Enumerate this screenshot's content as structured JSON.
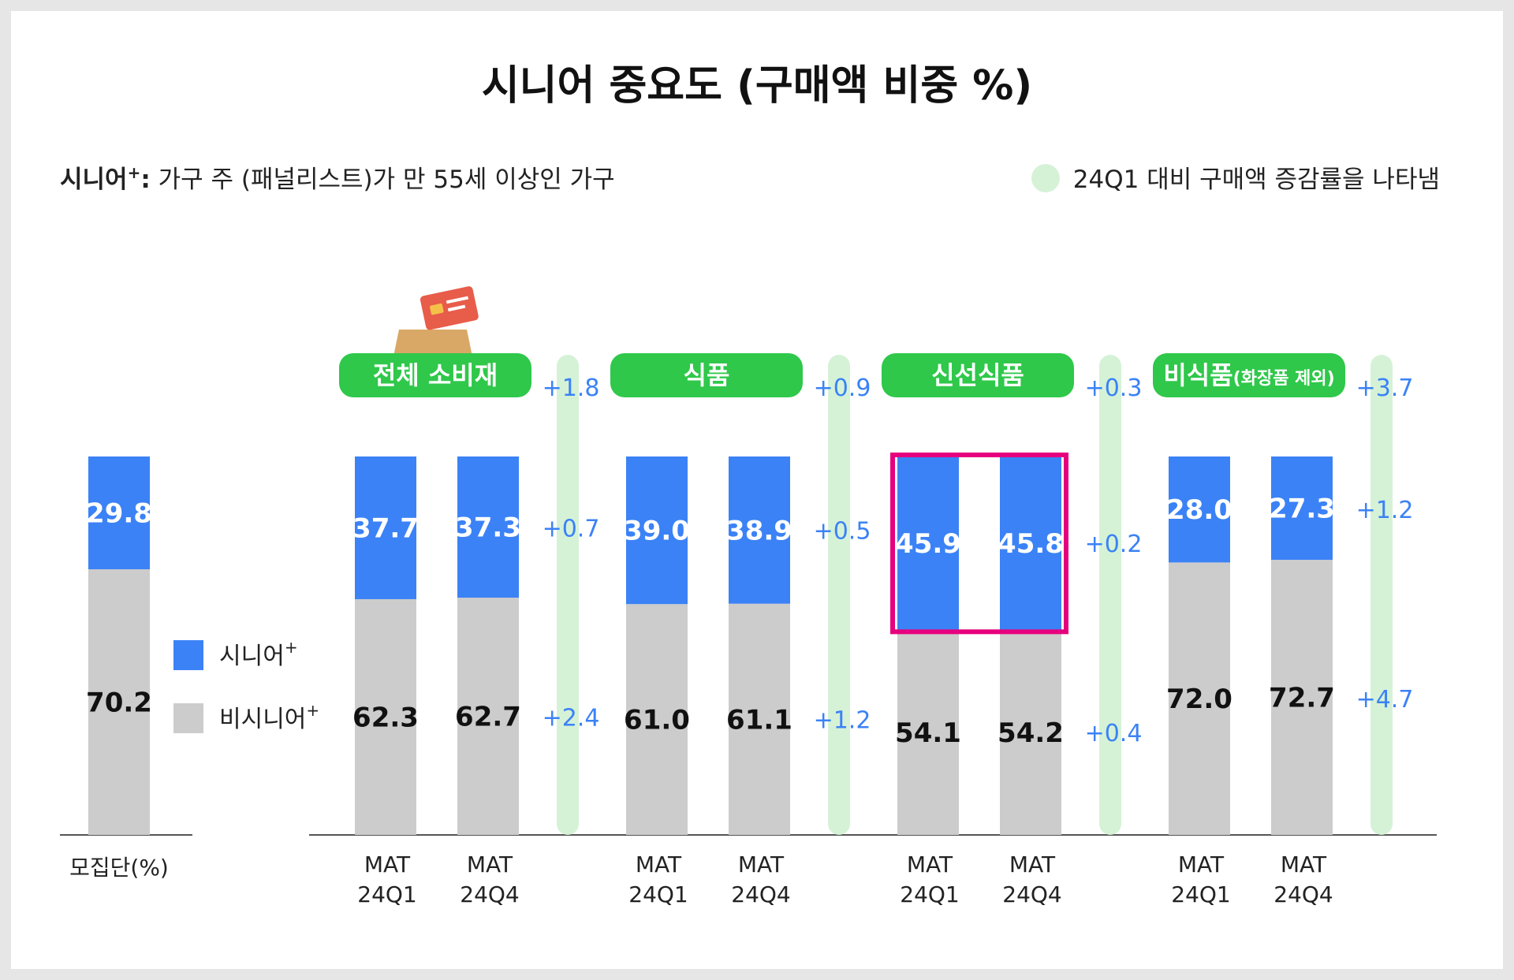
{
  "title": "시니어 중요도 (구매액 비중 %)",
  "definition": {
    "term": "시니어",
    "sup": "+",
    "colon": ":",
    "text": " 가구 주 (패널리스트)가 만 55세 이상인 가구"
  },
  "band_note": "24Q1 대비 구매액 증감률을 나타냄",
  "legend": [
    {
      "label": "시니어",
      "sup": "+",
      "color": "#3b82f6"
    },
    {
      "label": "비시니어",
      "sup": "+",
      "color": "#cccccc"
    }
  ],
  "colors": {
    "senior": "#3b82f6",
    "non_senior": "#cccccc",
    "pill": "#2fc84a",
    "band": "#d5f2d7",
    "delta_text": "#3b82f6",
    "highlight": "#e6007e",
    "baseline": "#555555"
  },
  "icons": [
    "shopping-bag-icon",
    "credit-card-icon"
  ],
  "chart_data": {
    "type": "bar",
    "stacked": true,
    "population": {
      "label": "모집단(%)",
      "senior": 29.8,
      "non_senior": 70.2
    },
    "groups": [
      {
        "name": "전체 소비재",
        "name_suffix": "",
        "total_delta": "+1.8",
        "senior_delta": "+0.7",
        "non_senior_delta": "+2.4",
        "highlighted": false,
        "bars": [
          {
            "label_top": "MAT",
            "label_bottom": "24Q1",
            "senior": 37.7,
            "non_senior": 62.3
          },
          {
            "label_top": "MAT",
            "label_bottom": "24Q4",
            "senior": 37.3,
            "non_senior": 62.7
          }
        ]
      },
      {
        "name": "식품",
        "name_suffix": "",
        "total_delta": "+0.9",
        "senior_delta": "+0.5",
        "non_senior_delta": "+1.2",
        "highlighted": false,
        "bars": [
          {
            "label_top": "MAT",
            "label_bottom": "24Q1",
            "senior": 39.0,
            "non_senior": 61.0
          },
          {
            "label_top": "MAT",
            "label_bottom": "24Q4",
            "senior": 38.9,
            "non_senior": 61.1
          }
        ]
      },
      {
        "name": "신선식품",
        "name_suffix": "",
        "total_delta": "+0.3",
        "senior_delta": "+0.2",
        "non_senior_delta": "+0.4",
        "highlighted": true,
        "bars": [
          {
            "label_top": "MAT",
            "label_bottom": "24Q1",
            "senior": 45.9,
            "non_senior": 54.1
          },
          {
            "label_top": "MAT",
            "label_bottom": "24Q4",
            "senior": 45.8,
            "non_senior": 54.2
          }
        ]
      },
      {
        "name": "비식품",
        "name_suffix": "(화장품 제외)",
        "total_delta": "+3.7",
        "senior_delta": "+1.2",
        "non_senior_delta": "+4.7",
        "highlighted": false,
        "bars": [
          {
            "label_top": "MAT",
            "label_bottom": "24Q1",
            "senior": 28.0,
            "non_senior": 72.0
          },
          {
            "label_top": "MAT",
            "label_bottom": "24Q4",
            "senior": 27.3,
            "non_senior": 72.7
          }
        ]
      }
    ],
    "ylim": [
      0,
      100
    ],
    "grid": false,
    "legend_position": "left"
  }
}
